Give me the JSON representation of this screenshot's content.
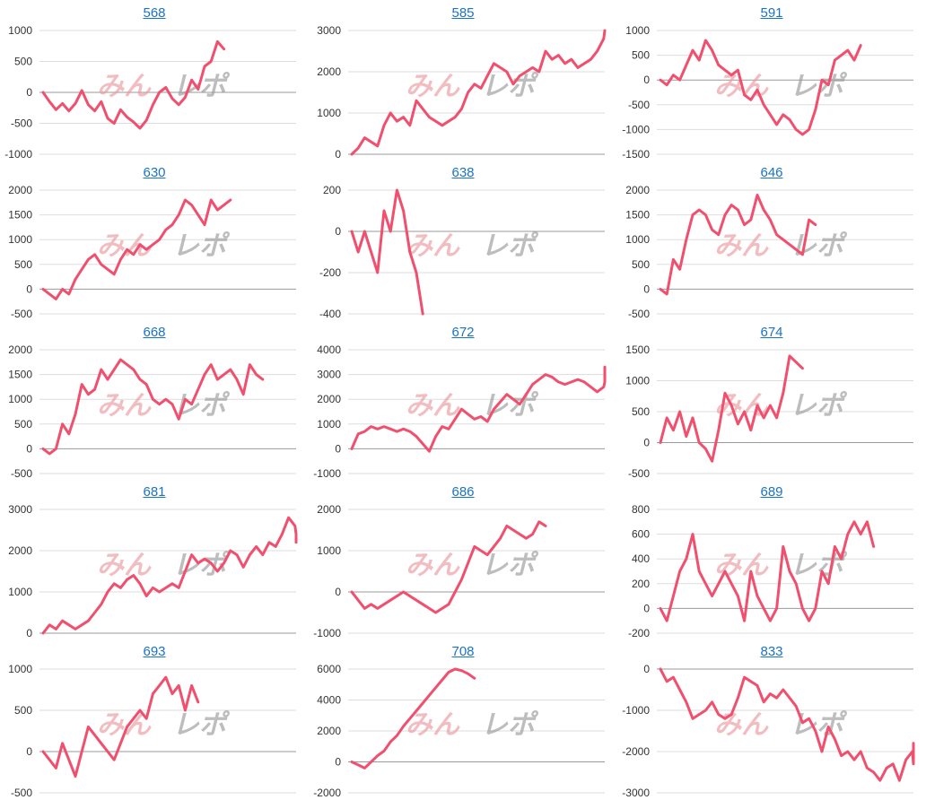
{
  "watermark": {
    "part1": "みん",
    "part2": "レポ"
  },
  "colors": {
    "line": "#f0506e",
    "title_link": "#1a73c8",
    "grid": "#dddddd",
    "zero_line": "#999999"
  },
  "chart_data": [
    {
      "type": "line",
      "title": "568",
      "ylim": [
        -1000,
        1000
      ],
      "yticks": [
        1000,
        500,
        0,
        -500,
        -1000
      ],
      "grid": true,
      "values": [
        0,
        -150,
        -280,
        -180,
        -300,
        -180,
        30,
        -200,
        -300,
        -150,
        -420,
        -500,
        -280,
        -400,
        -480,
        -580,
        -450,
        -200,
        0,
        80,
        -100,
        -200,
        -80,
        200,
        50,
        420,
        500,
        820,
        700
      ]
    },
    {
      "type": "line",
      "title": "585",
      "ylim": [
        0,
        3000
      ],
      "yticks": [
        3000,
        2000,
        1000,
        0
      ],
      "grid": true,
      "values": [
        0,
        150,
        400,
        300,
        200,
        700,
        1000,
        800,
        900,
        700,
        1300,
        1100,
        900,
        800,
        700,
        800,
        900,
        1100,
        1500,
        1700,
        1600,
        1900,
        2200,
        2100,
        2000,
        1700,
        1900,
        2000,
        2100,
        2000,
        2500,
        2300,
        2400,
        2200,
        2300,
        2100,
        2200,
        2300,
        2500,
        2800,
        3000
      ]
    },
    {
      "type": "line",
      "title": "591",
      "ylim": [
        -1500,
        1000
      ],
      "yticks": [
        1000,
        500,
        0,
        -500,
        -1000,
        -1500
      ],
      "grid": true,
      "values": [
        0,
        -100,
        100,
        0,
        300,
        600,
        400,
        800,
        600,
        300,
        200,
        100,
        200,
        -300,
        -400,
        -200,
        -500,
        -700,
        -900,
        -700,
        -800,
        -1000,
        -1100,
        -1000,
        -600,
        0,
        -100,
        400,
        500,
        600,
        400,
        700
      ]
    },
    {
      "type": "line",
      "title": "630",
      "ylim": [
        -500,
        2000
      ],
      "yticks": [
        2000,
        1500,
        1000,
        500,
        0,
        -500
      ],
      "grid": true,
      "values": [
        0,
        -100,
        -200,
        0,
        -100,
        200,
        400,
        600,
        700,
        500,
        400,
        300,
        600,
        800,
        700,
        900,
        800,
        900,
        1000,
        1200,
        1300,
        1500,
        1800,
        1700,
        1500,
        1300,
        1800,
        1600,
        1700,
        1800
      ]
    },
    {
      "type": "line",
      "title": "638",
      "ylim": [
        -400,
        200
      ],
      "yticks": [
        200,
        0,
        -200,
        -400
      ],
      "grid": true,
      "values": [
        0,
        -100,
        0,
        -100,
        -200,
        100,
        0,
        200,
        100,
        -100,
        -200,
        -400
      ]
    },
    {
      "type": "line",
      "title": "646",
      "ylim": [
        -500,
        2000
      ],
      "yticks": [
        2000,
        1500,
        1000,
        500,
        0,
        -500
      ],
      "grid": true,
      "values": [
        0,
        -100,
        600,
        400,
        1000,
        1500,
        1600,
        1500,
        1200,
        1100,
        1500,
        1700,
        1600,
        1300,
        1400,
        1900,
        1600,
        1400,
        1100,
        1000,
        900,
        800,
        700,
        1400,
        1300
      ]
    },
    {
      "type": "line",
      "title": "668",
      "ylim": [
        -500,
        2000
      ],
      "yticks": [
        2000,
        1500,
        1000,
        500,
        0,
        -500
      ],
      "grid": true,
      "values": [
        0,
        -100,
        0,
        500,
        300,
        700,
        1300,
        1100,
        1200,
        1600,
        1400,
        1600,
        1800,
        1700,
        1600,
        1400,
        1300,
        1000,
        900,
        1000,
        900,
        600,
        1000,
        900,
        1200,
        1500,
        1700,
        1400,
        1500,
        1600,
        1400,
        1100,
        1700,
        1500,
        1400
      ]
    },
    {
      "type": "line",
      "title": "672",
      "ylim": [
        -1000,
        4000
      ],
      "yticks": [
        4000,
        3000,
        2000,
        1000,
        0,
        -1000
      ],
      "grid": true,
      "values": [
        0,
        600,
        700,
        900,
        800,
        900,
        800,
        700,
        800,
        700,
        500,
        200,
        -100,
        500,
        900,
        800,
        1200,
        1600,
        1400,
        1200,
        1300,
        1100,
        1600,
        1900,
        2200,
        2000,
        1800,
        2200,
        2600,
        2800,
        3000,
        2900,
        2700,
        2600,
        2700,
        2800,
        2700,
        2500,
        2300,
        2500,
        2700,
        2900,
        2800,
        3100,
        2900,
        2700,
        3200,
        3300
      ]
    },
    {
      "type": "line",
      "title": "674",
      "ylim": [
        -500,
        1500
      ],
      "yticks": [
        1500,
        1000,
        500,
        0,
        -500
      ],
      "grid": true,
      "values": [
        0,
        400,
        200,
        500,
        100,
        400,
        0,
        -100,
        -300,
        200,
        800,
        600,
        300,
        500,
        200,
        600,
        400,
        600,
        400,
        800,
        1400,
        1300,
        1200
      ]
    },
    {
      "type": "line",
      "title": "681",
      "ylim": [
        0,
        3000
      ],
      "yticks": [
        3000,
        2000,
        1000,
        0
      ],
      "grid": true,
      "values": [
        0,
        200,
        100,
        300,
        200,
        100,
        200,
        300,
        500,
        700,
        1000,
        1200,
        1100,
        1300,
        1400,
        1200,
        900,
        1100,
        1000,
        1100,
        1200,
        1100,
        1500,
        1900,
        1700,
        1800,
        1700,
        1500,
        1700,
        2000,
        1900,
        1600,
        1900,
        2100,
        1900,
        2200,
        2100,
        2400,
        2800,
        2600,
        2400,
        2200,
        2400,
        2300,
        2200
      ]
    },
    {
      "type": "line",
      "title": "686",
      "ylim": [
        -1000,
        2000
      ],
      "yticks": [
        2000,
        1000,
        0,
        -1000
      ],
      "grid": true,
      "values": [
        0,
        -200,
        -400,
        -300,
        -400,
        -300,
        -200,
        -100,
        0,
        -100,
        -200,
        -300,
        -400,
        -500,
        -400,
        -300,
        0,
        300,
        700,
        1100,
        1000,
        900,
        1100,
        1300,
        1600,
        1500,
        1400,
        1300,
        1400,
        1700,
        1600
      ]
    },
    {
      "type": "line",
      "title": "689",
      "ylim": [
        -200,
        800
      ],
      "yticks": [
        800,
        600,
        400,
        200,
        0,
        -200
      ],
      "grid": true,
      "values": [
        0,
        -100,
        100,
        300,
        400,
        600,
        300,
        200,
        100,
        200,
        300,
        200,
        100,
        -100,
        300,
        100,
        0,
        -100,
        0,
        500,
        300,
        200,
        0,
        -100,
        0,
        300,
        200,
        500,
        400,
        600,
        700,
        600,
        700,
        500
      ]
    },
    {
      "type": "line",
      "title": "693",
      "ylim": [
        -500,
        1000
      ],
      "yticks": [
        1000,
        500,
        0,
        -500
      ],
      "grid": true,
      "values": [
        0,
        -100,
        -200,
        100,
        -100,
        -300,
        0,
        300,
        200,
        100,
        0,
        -100,
        100,
        300,
        400,
        500,
        400,
        700,
        800,
        900,
        700,
        800,
        500,
        800,
        600
      ]
    },
    {
      "type": "line",
      "title": "708",
      "ylim": [
        -2000,
        6000
      ],
      "yticks": [
        6000,
        4000,
        2000,
        0,
        -2000
      ],
      "grid": true,
      "values": [
        0,
        -200,
        -400,
        0,
        400,
        700,
        1300,
        1700,
        2300,
        2800,
        3300,
        3800,
        4300,
        4800,
        5300,
        5800,
        6000,
        5900,
        5700,
        5400
      ]
    },
    {
      "type": "line",
      "title": "833",
      "ylim": [
        -3000,
        0
      ],
      "yticks": [
        0,
        -1000,
        -2000,
        -3000
      ],
      "grid": true,
      "values": [
        0,
        -300,
        -200,
        -500,
        -800,
        -1200,
        -1100,
        -1000,
        -800,
        -1100,
        -1200,
        -1100,
        -700,
        -200,
        -300,
        -400,
        -800,
        -600,
        -700,
        -500,
        -700,
        -900,
        -1300,
        -1200,
        -1500,
        -2000,
        -1400,
        -1700,
        -2100,
        -2000,
        -2200,
        -2000,
        -2400,
        -2500,
        -2700,
        -2400,
        -2300,
        -2700,
        -2200,
        -2000,
        -2300,
        -1800
      ]
    }
  ]
}
